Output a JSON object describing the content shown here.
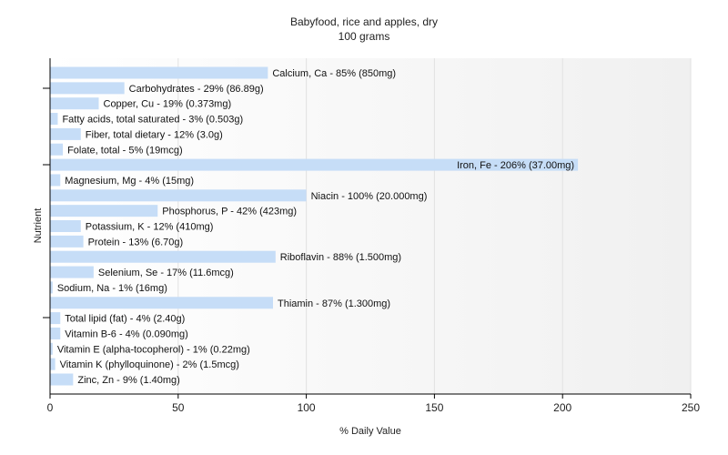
{
  "chart_data": {
    "type": "bar",
    "orientation": "horizontal",
    "title": "Babyfood, rice and apples, dry",
    "subtitle": "100 grams",
    "xlabel": "% Daily Value",
    "ylabel": "Nutrient",
    "xlim": [
      0,
      250
    ],
    "x_ticks": [
      0,
      50,
      100,
      150,
      200,
      250
    ],
    "grid": true,
    "bar_color": "#c6ddf7",
    "categories": [
      "Calcium, Ca",
      "Carbohydrates",
      "Copper, Cu",
      "Fatty acids, total saturated",
      "Fiber, total dietary",
      "Folate, total",
      "Iron, Fe",
      "Magnesium, Mg",
      "Niacin",
      "Phosphorus, P",
      "Potassium, K",
      "Protein",
      "Riboflavin",
      "Selenium, Se",
      "Sodium, Na",
      "Thiamin",
      "Total lipid (fat)",
      "Vitamin B-6",
      "Vitamin E (alpha-tocopherol)",
      "Vitamin K (phylloquinone)",
      "Zinc, Zn"
    ],
    "values": [
      85,
      29,
      19,
      3,
      12,
      5,
      206,
      4,
      100,
      42,
      12,
      13,
      88,
      17,
      1,
      87,
      4,
      4,
      1,
      2,
      9
    ],
    "labels": [
      "Calcium, Ca - 85% (850mg)",
      "Carbohydrates - 29% (86.89g)",
      "Copper, Cu - 19% (0.373mg)",
      "Fatty acids, total saturated - 3% (0.503g)",
      "Fiber, total dietary - 12% (3.0g)",
      "Folate, total - 5% (19mcg)",
      "Iron, Fe - 206% (37.00mg)",
      "Magnesium, Mg - 4% (15mg)",
      "Niacin - 100% (20.000mg)",
      "Phosphorus, P - 42% (423mg)",
      "Potassium, K - 12% (410mg)",
      "Protein - 13% (6.70g)",
      "Riboflavin - 88% (1.500mg)",
      "Selenium, Se - 17% (11.6mcg)",
      "Sodium, Na - 1% (16mg)",
      "Thiamin - 87% (1.300mg)",
      "Total lipid (fat) - 4% (2.40g)",
      "Vitamin B-6 - 4% (0.090mg)",
      "Vitamin E (alpha-tocopherol) - 1% (0.22mg)",
      "Vitamin K (phylloquinone) - 2% (1.5mcg)",
      "Zinc, Zn - 9% (1.40mg)"
    ]
  }
}
